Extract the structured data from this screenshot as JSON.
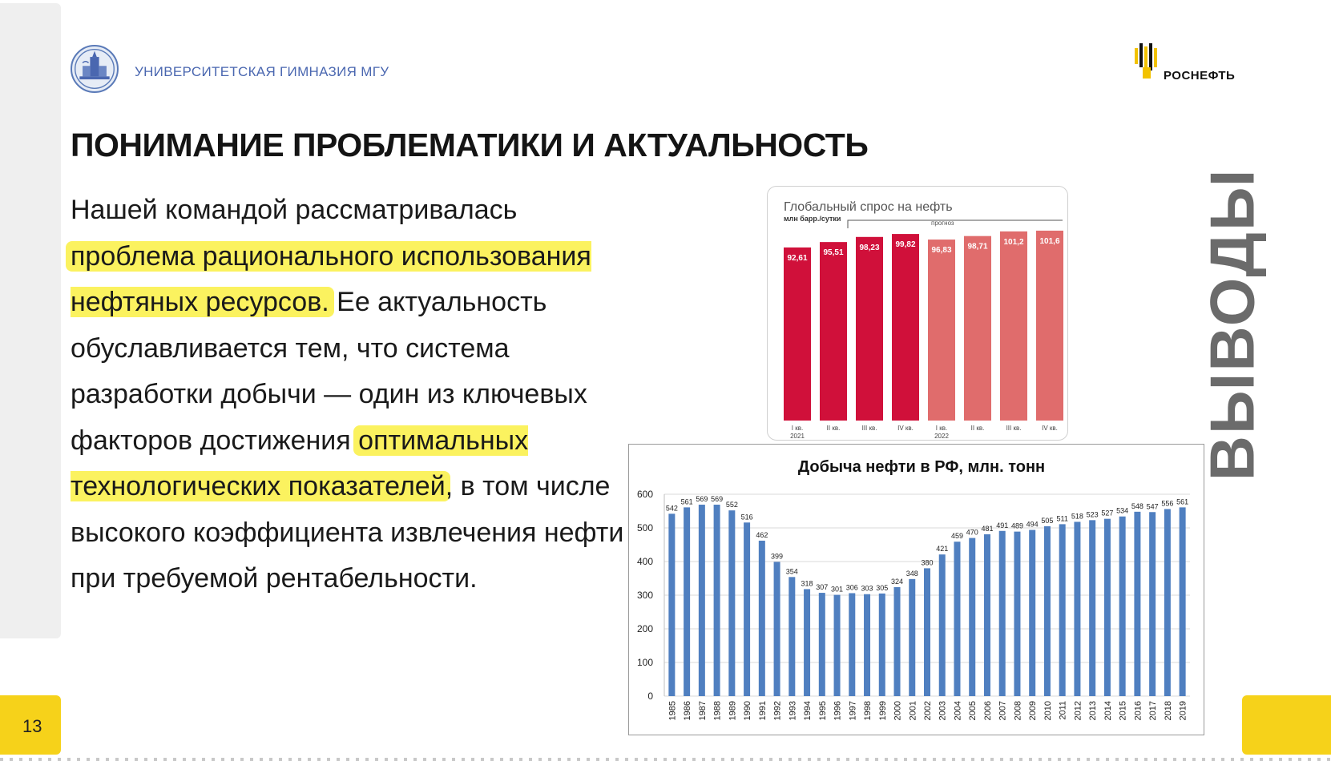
{
  "header": {
    "school_name": "УНИВЕРСИТЕТСКАЯ ГИМНАЗИЯ МГУ",
    "brand_name": "РОСНЕФТЬ"
  },
  "slide": {
    "title": "ПОНИМАНИЕ ПРОБЛЕМАТИКИ И АКТУАЛЬНОСТЬ",
    "vertical_title": "ВЫВОДЫ",
    "page_number": "13",
    "body": {
      "t1": "Нашей командой рассматривалась ",
      "h1": "проблема рационального использования нефтяных ресурсов.",
      "t2": " Ее актуальность обуславливается тем, что система разработки добычи — один из ключевых факторов достижения ",
      "h2": "оптимальных технологических показателей",
      "t3": ", в том числе высокого коэффициента извлечения нефти при требуемой рентабельности."
    }
  },
  "chart_data": [
    {
      "type": "bar",
      "title": "Глобальный спрос на нефть",
      "subtitle": "млн барр./сутки",
      "annotation": "прогноз",
      "categories": [
        "I кв. 2021",
        "II кв.",
        "III кв.",
        "IV кв.",
        "I кв. 2022",
        "II кв.",
        "III кв.",
        "IV кв."
      ],
      "values": [
        92.61,
        95.51,
        98.23,
        99.82,
        96.83,
        98.71,
        101.2,
        101.6
      ],
      "value_labels": [
        "92,61",
        "95,51",
        "98,23",
        "99,82",
        "96,83",
        "98,71",
        "101,2",
        "101,6"
      ],
      "colors": {
        "actual": "#d0103a",
        "forecast": "#e06c6c"
      },
      "forecast_from_index": 4
    },
    {
      "type": "bar",
      "title": "Добыча нефти в РФ, млн. тонн",
      "categories": [
        "1985",
        "1986",
        "1987",
        "1988",
        "1989",
        "1990",
        "1991",
        "1992",
        "1993",
        "1994",
        "1995",
        "1996",
        "1997",
        "1998",
        "1999",
        "2000",
        "2001",
        "2002",
        "2003",
        "2004",
        "2005",
        "2006",
        "2007",
        "2008",
        "2009",
        "2010",
        "2011",
        "2012",
        "2013",
        "2014",
        "2015",
        "2016",
        "2017",
        "2018",
        "2019"
      ],
      "values": [
        542,
        561,
        569,
        569,
        552,
        516,
        462,
        399,
        354,
        318,
        307,
        301,
        306,
        303,
        305,
        324,
        348,
        380,
        421,
        459,
        470,
        481,
        491,
        489,
        494,
        505,
        511,
        518,
        523,
        527,
        534,
        548,
        547,
        556,
        561
      ],
      "ylim": [
        0,
        600
      ],
      "yticks": [
        0,
        100,
        200,
        300,
        400,
        500,
        600
      ],
      "grid": true,
      "color": "#4f7fc0"
    }
  ]
}
